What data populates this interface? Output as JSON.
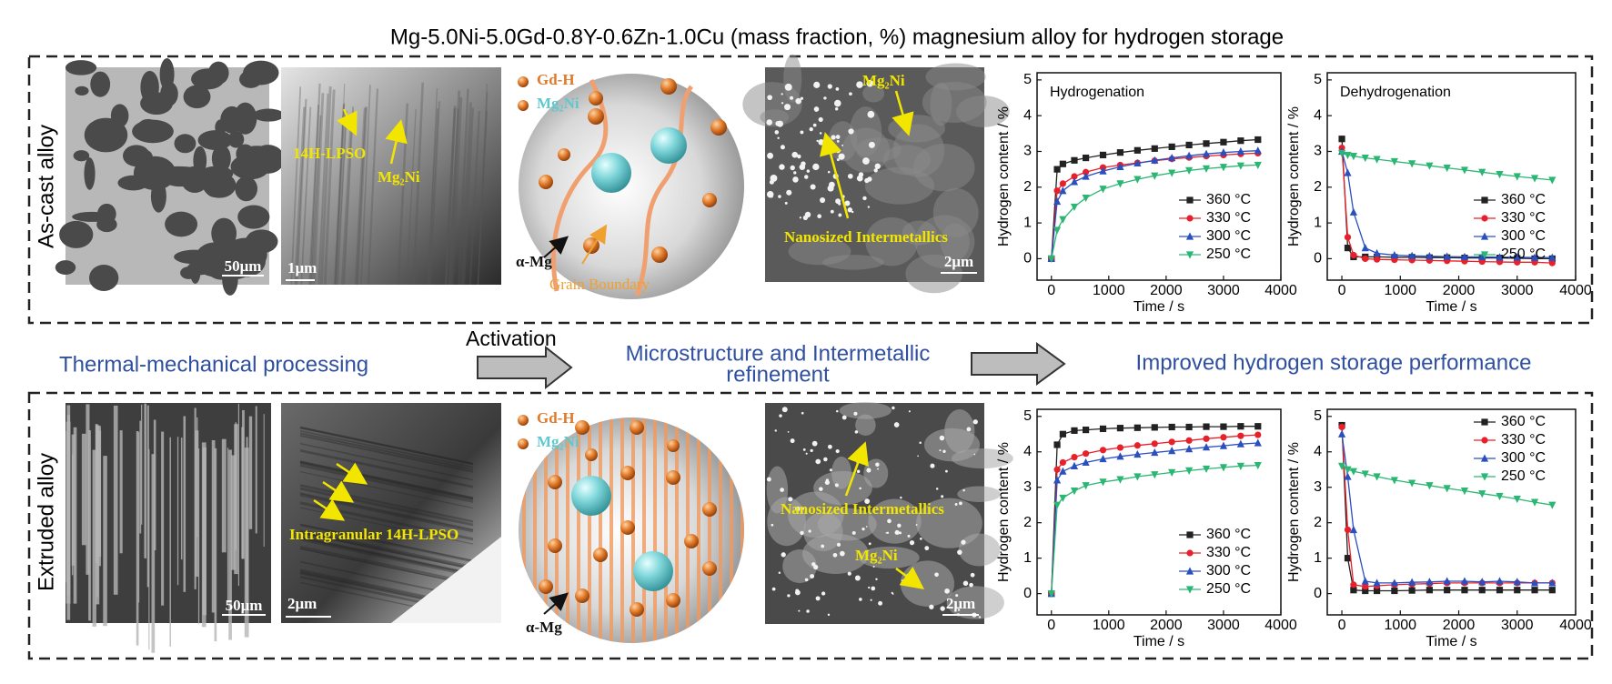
{
  "title": "Mg-5.0Ni-5.0Gd-0.8Y-0.6Zn-1.0Cu (mass fraction, %) magnesium alloy for hydrogen storage",
  "rows": [
    {
      "label": "As-cast alloy",
      "panels": [
        {
          "texts": [
            "50μm"
          ]
        },
        {
          "texts": [
            "14H-LPSO",
            "Mg₂Ni",
            "1μm"
          ]
        },
        {
          "texts": [
            "Gd-H",
            "Mg₂Ni",
            "α-Mg",
            "Grain Boundary"
          ]
        },
        {
          "texts": [
            "Mg₂Ni",
            "Nanosized Intermetallics",
            "2μm"
          ]
        }
      ]
    },
    {
      "label": "Extruded alloy",
      "panels": [
        {
          "texts": [
            "50μm"
          ]
        },
        {
          "texts": [
            "Intragranular 14H-LPSO",
            "2μm"
          ]
        },
        {
          "texts": [
            "Gd-H",
            "Mg₂Ni",
            "α-Mg"
          ]
        },
        {
          "texts": [
            "Nanosized Intermetallics",
            "Mg₂Ni",
            "2μm"
          ]
        }
      ]
    }
  ],
  "flow": {
    "start": "Thermal-mechanical processing",
    "step": "Activation",
    "middle": [
      "Microstructure and Intermetallic",
      "refinement"
    ],
    "end": "Improved hydrogen storage performance"
  },
  "chart_data": [
    {
      "type": "line",
      "title": "Hydrogenation",
      "xlabel": "Time / s",
      "ylabel": "Hydrogen content / %",
      "legend": "lower right",
      "x": [
        0,
        100,
        200,
        400,
        600,
        900,
        1200,
        1500,
        1800,
        2100,
        2400,
        2700,
        3000,
        3300,
        3600
      ],
      "xlim": [
        -250,
        4000
      ],
      "ylim": [
        -0.6,
        5.2
      ],
      "xticks": [
        0,
        1000,
        2000,
        3000,
        4000
      ],
      "yticks": [
        0,
        1,
        2,
        3,
        4,
        5
      ],
      "series": [
        {
          "name": "360 °C",
          "color": "#222222",
          "marker": "square",
          "values": [
            0,
            2.5,
            2.65,
            2.75,
            2.82,
            2.9,
            2.97,
            3.03,
            3.08,
            3.13,
            3.18,
            3.22,
            3.26,
            3.3,
            3.33
          ]
        },
        {
          "name": "330 °C",
          "color": "#e8202a",
          "marker": "circle",
          "values": [
            0,
            1.9,
            2.1,
            2.3,
            2.42,
            2.55,
            2.62,
            2.68,
            2.74,
            2.79,
            2.83,
            2.87,
            2.9,
            2.93,
            2.95
          ]
        },
        {
          "name": "300 °C",
          "color": "#2a4fbf",
          "marker": "triangle",
          "values": [
            0,
            1.6,
            1.9,
            2.15,
            2.3,
            2.45,
            2.57,
            2.67,
            2.75,
            2.82,
            2.88,
            2.93,
            2.97,
            3.0,
            3.02
          ]
        },
        {
          "name": "250 °C",
          "color": "#2bb673",
          "marker": "triangle-down",
          "values": [
            0,
            0.8,
            1.1,
            1.45,
            1.7,
            1.95,
            2.1,
            2.22,
            2.32,
            2.4,
            2.47,
            2.52,
            2.56,
            2.6,
            2.62
          ]
        }
      ]
    },
    {
      "type": "line",
      "title": "Dehydrogenation",
      "xlabel": "Time / s",
      "ylabel": "Hydrogen content / %",
      "legend": "lower right",
      "x": [
        0,
        100,
        200,
        400,
        600,
        900,
        1200,
        1500,
        1800,
        2100,
        2400,
        2700,
        3000,
        3300,
        3600
      ],
      "xlim": [
        -250,
        4000
      ],
      "ylim": [
        -0.6,
        5.2
      ],
      "xticks": [
        0,
        1000,
        2000,
        3000,
        4000
      ],
      "yticks": [
        0,
        1,
        2,
        3,
        4,
        5
      ],
      "series": [
        {
          "name": "360 °C",
          "color": "#222222",
          "marker": "square",
          "values": [
            3.35,
            0.3,
            0.05,
            0.05,
            0.05,
            0.04,
            0.04,
            0.03,
            0.03,
            0.02,
            0.02,
            0.02,
            0.01,
            0,
            0
          ]
        },
        {
          "name": "330 °C",
          "color": "#e8202a",
          "marker": "circle",
          "values": [
            3.1,
            0.6,
            0.1,
            0,
            -0.02,
            -0.03,
            -0.04,
            -0.05,
            -0.06,
            -0.07,
            -0.08,
            -0.09,
            -0.1,
            -0.1,
            -0.12
          ]
        },
        {
          "name": "300 °C",
          "color": "#2a4fbf",
          "marker": "triangle",
          "values": [
            3.0,
            2.4,
            1.3,
            0.3,
            0.15,
            0.1,
            0.08,
            0.07,
            0.06,
            0.05,
            0.05,
            0.04,
            0.04,
            0.03,
            0.03
          ]
        },
        {
          "name": "250 °C",
          "color": "#2bb673",
          "marker": "triangle-down",
          "values": [
            2.95,
            2.9,
            2.87,
            2.82,
            2.78,
            2.72,
            2.66,
            2.6,
            2.54,
            2.48,
            2.42,
            2.36,
            2.3,
            2.25,
            2.2
          ]
        }
      ]
    },
    {
      "type": "line",
      "xlabel": "Time / s",
      "ylabel": "Hydrogen content / %",
      "legend": "lower right",
      "x": [
        0,
        100,
        200,
        400,
        600,
        900,
        1200,
        1500,
        1800,
        2100,
        2400,
        2700,
        3000,
        3300,
        3600
      ],
      "xlim": [
        -250,
        4000
      ],
      "ylim": [
        -0.6,
        5.2
      ],
      "xticks": [
        0,
        1000,
        2000,
        3000,
        4000
      ],
      "yticks": [
        0,
        1,
        2,
        3,
        4,
        5
      ],
      "series": [
        {
          "name": "360 °C",
          "color": "#222222",
          "marker": "square",
          "values": [
            0,
            4.2,
            4.5,
            4.6,
            4.62,
            4.65,
            4.67,
            4.68,
            4.69,
            4.7,
            4.7,
            4.71,
            4.71,
            4.72,
            4.72
          ]
        },
        {
          "name": "330 °C",
          "color": "#e8202a",
          "marker": "circle",
          "values": [
            0,
            3.5,
            3.7,
            3.85,
            3.95,
            4.05,
            4.12,
            4.18,
            4.23,
            4.28,
            4.32,
            4.37,
            4.41,
            4.45,
            4.48
          ]
        },
        {
          "name": "300 °C",
          "color": "#2a4fbf",
          "marker": "triangle",
          "values": [
            0,
            3.2,
            3.45,
            3.6,
            3.7,
            3.8,
            3.87,
            3.93,
            3.98,
            4.03,
            4.08,
            4.13,
            4.17,
            4.22,
            4.25
          ]
        },
        {
          "name": "250 °C",
          "color": "#2bb673",
          "marker": "triangle-down",
          "values": [
            0,
            2.5,
            2.7,
            2.9,
            3.05,
            3.15,
            3.22,
            3.3,
            3.36,
            3.42,
            3.47,
            3.52,
            3.56,
            3.6,
            3.62
          ]
        }
      ]
    },
    {
      "type": "line",
      "xlabel": "Time / s",
      "ylabel": "Hydrogen content / %",
      "legend": "upper right",
      "x": [
        0,
        100,
        200,
        400,
        600,
        900,
        1200,
        1500,
        1800,
        2100,
        2400,
        2700,
        3000,
        3300,
        3600
      ],
      "xlim": [
        -250,
        4000
      ],
      "ylim": [
        -0.6,
        5.2
      ],
      "xticks": [
        0,
        1000,
        2000,
        3000,
        4000
      ],
      "yticks": [
        0,
        1,
        2,
        3,
        4,
        5
      ],
      "series": [
        {
          "name": "360 °C",
          "color": "#222222",
          "marker": "square",
          "values": [
            4.75,
            1.0,
            0.1,
            0.08,
            0.08,
            0.08,
            0.09,
            0.1,
            0.1,
            0.1,
            0.1,
            0.1,
            0.1,
            0.1,
            0.1
          ]
        },
        {
          "name": "330 °C",
          "color": "#e8202a",
          "marker": "circle",
          "values": [
            4.7,
            1.8,
            0.25,
            0.2,
            0.22,
            0.25,
            0.27,
            0.28,
            0.3,
            0.3,
            0.3,
            0.3,
            0.3,
            0.3,
            0.3
          ]
        },
        {
          "name": "300 °C",
          "color": "#2a4fbf",
          "marker": "triangle",
          "values": [
            4.5,
            3.3,
            1.8,
            0.35,
            0.3,
            0.3,
            0.32,
            0.33,
            0.35,
            0.35,
            0.33,
            0.35,
            0.33,
            0.3,
            0.3
          ]
        },
        {
          "name": "250 °C",
          "color": "#2bb673",
          "marker": "triangle-down",
          "values": [
            3.6,
            3.5,
            3.45,
            3.38,
            3.3,
            3.2,
            3.12,
            3.05,
            2.97,
            2.9,
            2.82,
            2.75,
            2.67,
            2.58,
            2.5
          ]
        }
      ]
    }
  ]
}
